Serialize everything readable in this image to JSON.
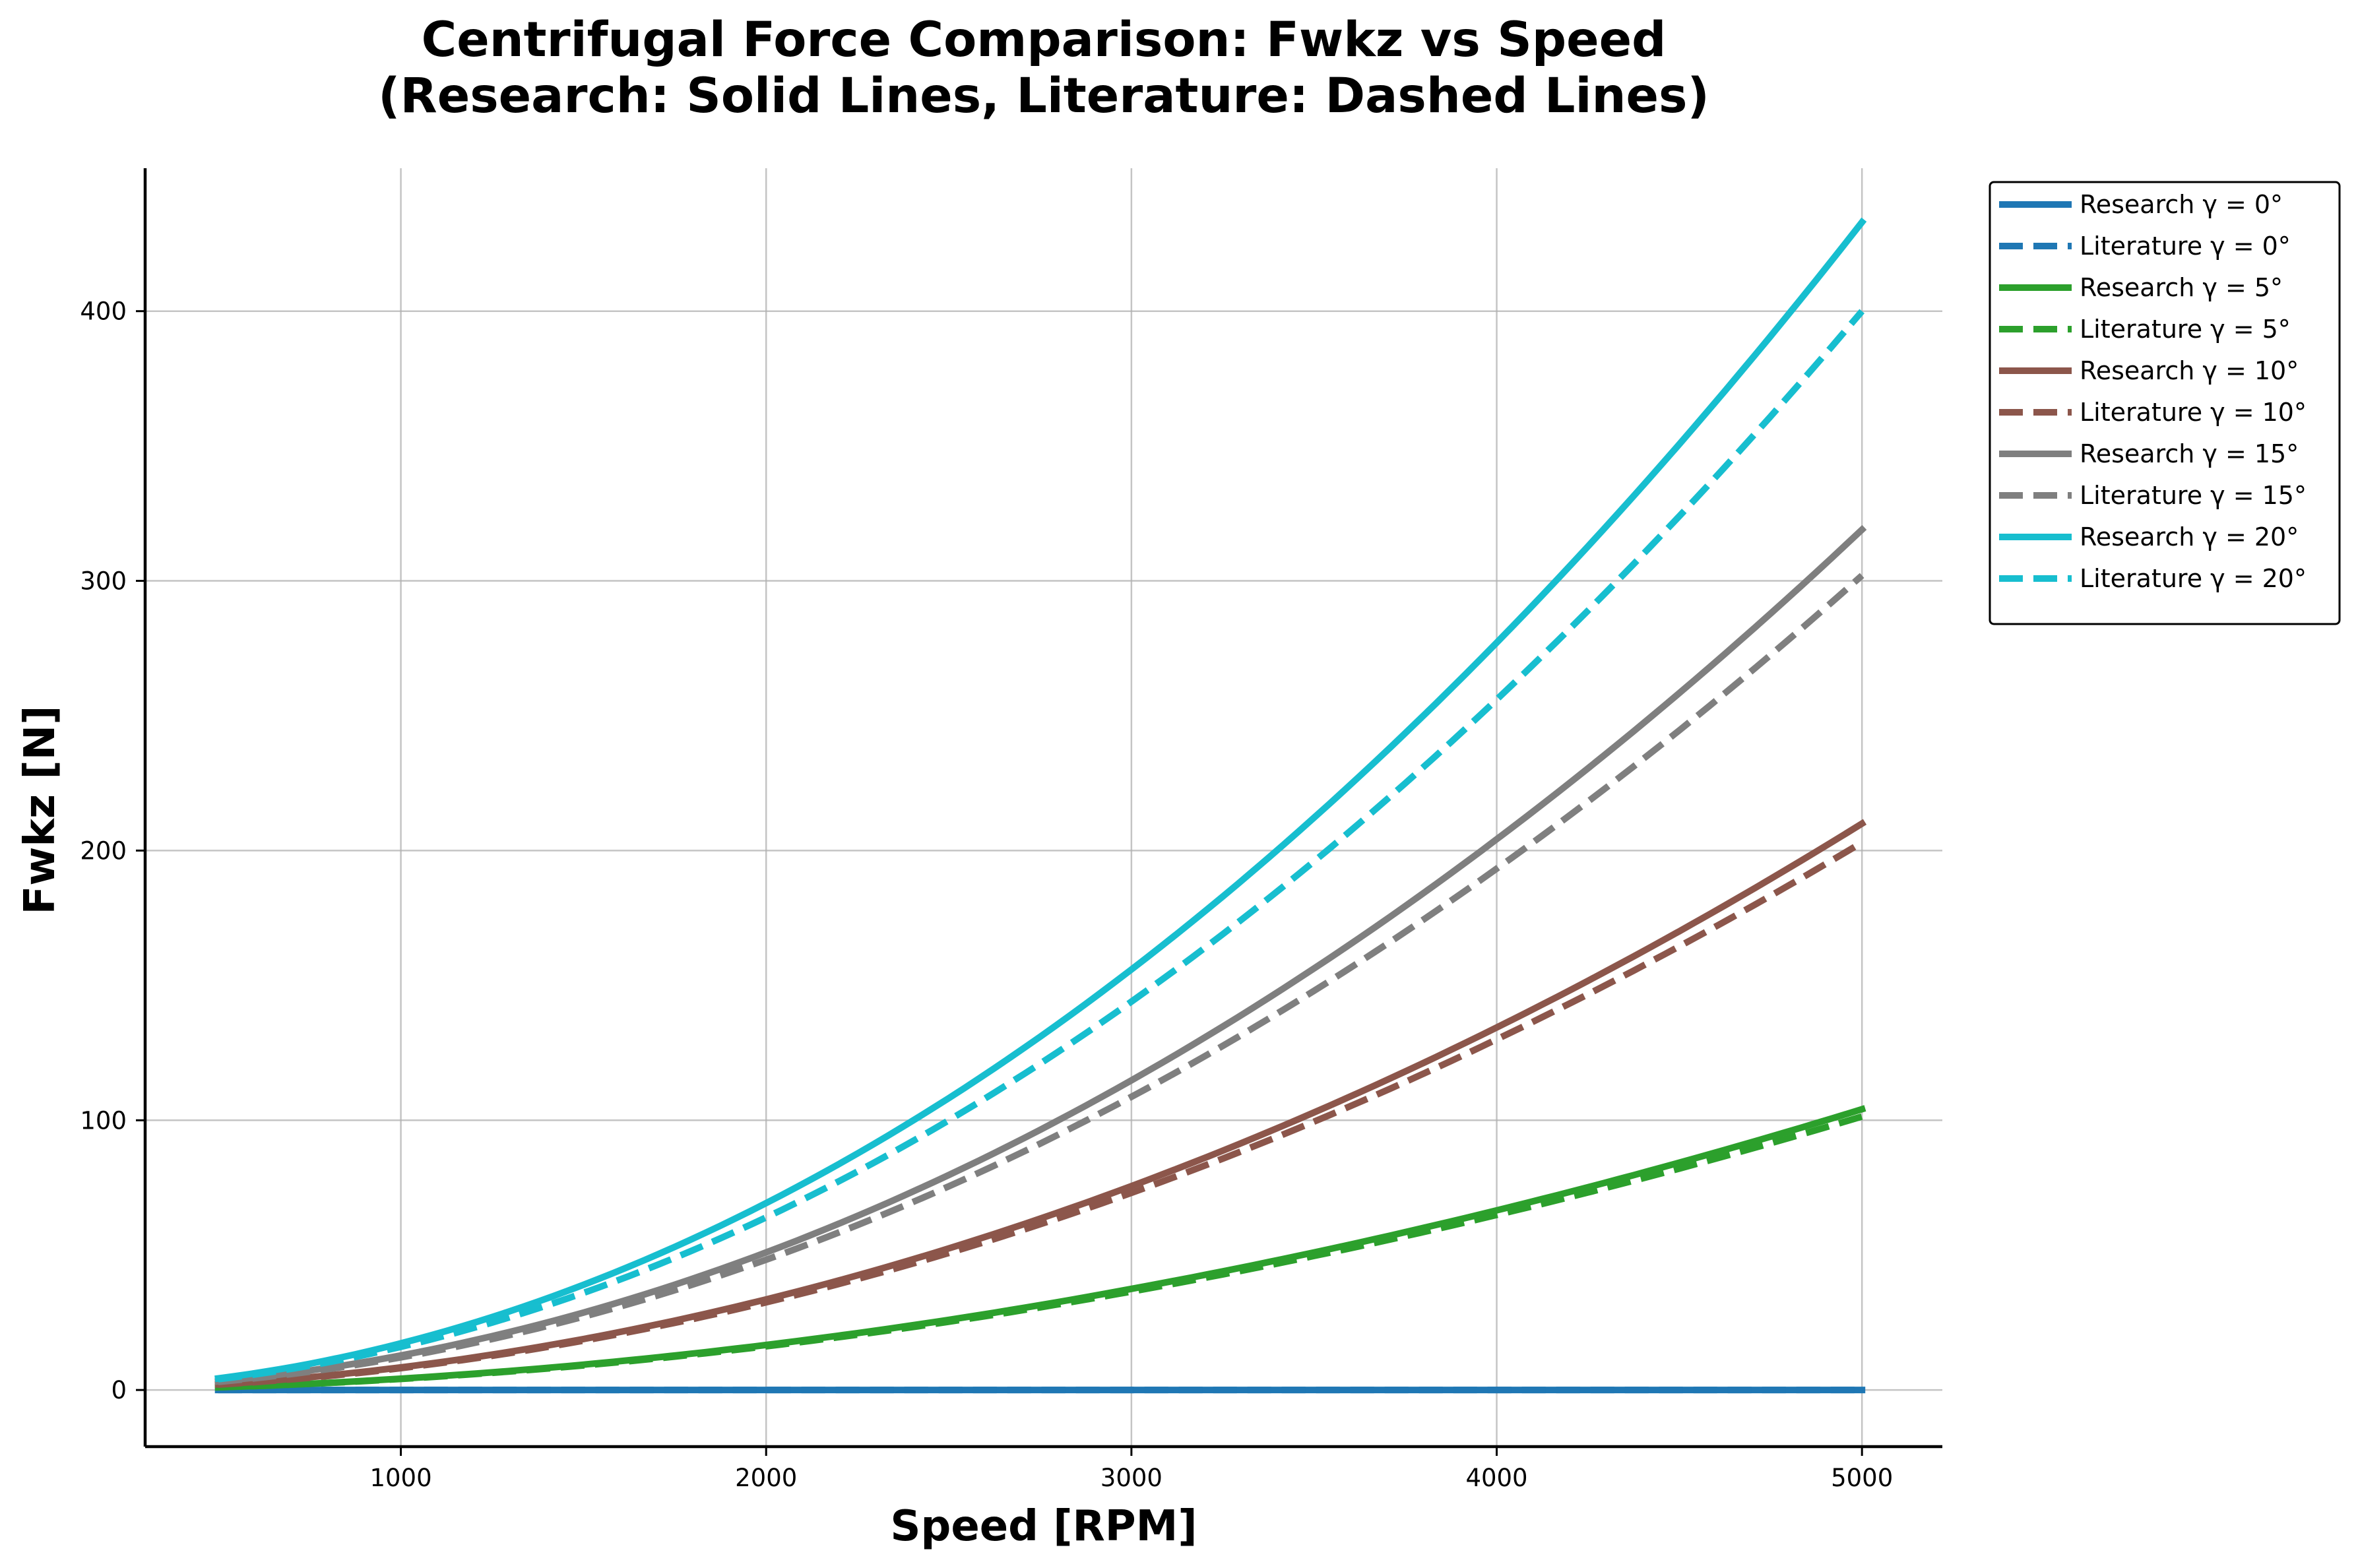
{
  "chart_data": {
    "type": "line",
    "title": "Centrifugal Force Comparison: Fwkz vs Speed",
    "subtitle": "(Research: Solid Lines, Literature: Dashed Lines)",
    "xlabel": "Speed [RPM]",
    "ylabel": "Fwkz [N]",
    "xlim": [
      300,
      5220
    ],
    "ylim": [
      -21,
      453
    ],
    "xticks": [
      1000,
      2000,
      3000,
      4000,
      5000
    ],
    "yticks": [
      0,
      100,
      200,
      300,
      400
    ],
    "grid": true,
    "legend_position": "outside-right-top",
    "x": [
      500,
      1000,
      1500,
      2000,
      2500,
      3000,
      3500,
      4000,
      4500,
      5000
    ],
    "series": [
      {
        "name": "Research γ = 0°",
        "color": "#1f77b4",
        "dash": "solid",
        "values": [
          0,
          0,
          0,
          0,
          0,
          0,
          0,
          0,
          0,
          0
        ]
      },
      {
        "name": "Literature γ = 0°",
        "color": "#1f77b4",
        "dash": "dashed",
        "values": [
          0,
          0,
          0,
          0,
          0,
          0,
          0,
          0,
          0,
          0
        ]
      },
      {
        "name": "Research γ = 5°",
        "color": "#2ca02c",
        "dash": "solid",
        "values": [
          1.0,
          4.2,
          9.4,
          16.7,
          26.0,
          37.5,
          51.0,
          66.6,
          84.3,
          104.1
        ]
      },
      {
        "name": "Literature γ = 5°",
        "color": "#2ca02c",
        "dash": "dashed",
        "values": [
          1.0,
          4.1,
          9.1,
          16.2,
          25.3,
          36.5,
          49.7,
          64.9,
          82.1,
          101.4
        ]
      },
      {
        "name": "Research γ = 10°",
        "color": "#8c564b",
        "dash": "solid",
        "values": [
          2.1,
          8.4,
          18.9,
          33.6,
          52.5,
          75.6,
          102.9,
          134.4,
          170.1,
          210.0
        ]
      },
      {
        "name": "Literature γ = 10°",
        "color": "#8c564b",
        "dash": "dashed",
        "values": [
          2.0,
          8.1,
          18.3,
          32.5,
          50.8,
          73.1,
          99.5,
          130.0,
          164.5,
          203.0
        ]
      },
      {
        "name": "Research γ = 15°",
        "color": "#7f7f7f",
        "dash": "solid",
        "values": [
          3.2,
          12.8,
          28.7,
          51.0,
          79.7,
          114.8,
          156.3,
          204.2,
          258.4,
          319.0
        ]
      },
      {
        "name": "Literature γ = 15°",
        "color": "#7f7f7f",
        "dash": "dashed",
        "values": [
          3.0,
          12.1,
          27.2,
          48.3,
          75.5,
          108.7,
          148.0,
          193.3,
          244.6,
          302.0
        ]
      },
      {
        "name": "Research γ = 20°",
        "color": "#17becf",
        "dash": "solid",
        "values": [
          4.3,
          17.3,
          39.0,
          69.3,
          108.2,
          155.9,
          212.2,
          277.1,
          350.7,
          433.0
        ]
      },
      {
        "name": "Literature γ = 20°",
        "color": "#17becf",
        "dash": "dashed",
        "values": [
          4.0,
          16.0,
          36.0,
          64.0,
          100.0,
          144.0,
          196.0,
          256.0,
          324.0,
          400.0
        ]
      }
    ]
  }
}
